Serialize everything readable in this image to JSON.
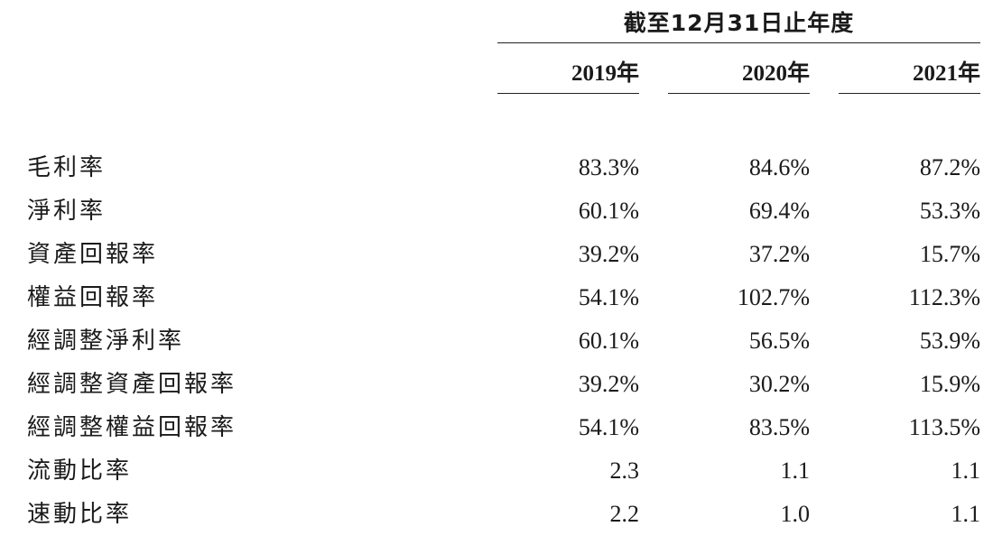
{
  "header": {
    "period": "截至12月31日止年度",
    "years": [
      "2019年",
      "2020年",
      "2021年"
    ]
  },
  "rows": [
    {
      "label": "毛利率",
      "values": [
        "83.3%",
        "84.6%",
        "87.2%"
      ]
    },
    {
      "label": "淨利率",
      "values": [
        "60.1%",
        "69.4%",
        "53.3%"
      ]
    },
    {
      "label": "資產回報率",
      "values": [
        "39.2%",
        "37.2%",
        "15.7%"
      ]
    },
    {
      "label": "權益回報率",
      "values": [
        "54.1%",
        "102.7%",
        "112.3%"
      ]
    },
    {
      "label": "經調整淨利率",
      "values": [
        "60.1%",
        "56.5%",
        "53.9%"
      ]
    },
    {
      "label": "經調整資產回報率",
      "values": [
        "39.2%",
        "30.2%",
        "15.9%"
      ]
    },
    {
      "label": "經調整權益回報率",
      "values": [
        "54.1%",
        "83.5%",
        "113.5%"
      ]
    },
    {
      "label": "流動比率",
      "values": [
        "2.3",
        "1.1",
        "1.1"
      ]
    },
    {
      "label": "速動比率",
      "values": [
        "2.2",
        "1.0",
        "1.1"
      ]
    }
  ]
}
